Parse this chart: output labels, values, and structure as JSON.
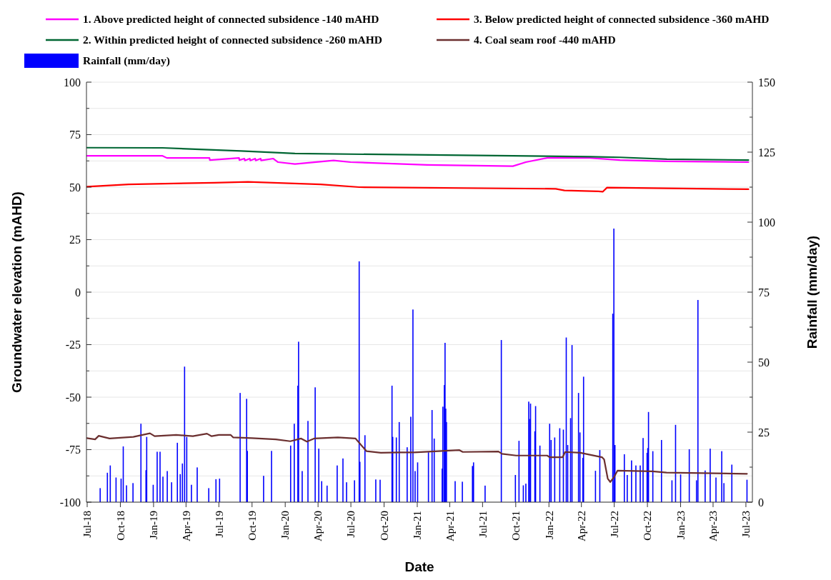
{
  "chart_data": {
    "type": "line",
    "xlabel": "Date",
    "ylabel": "Groundwater elevation (mAHD)",
    "y2label": "Rainfall (mm/day)",
    "xlim": [
      "2018-06-29",
      "2023-07-19"
    ],
    "xticks": [
      {
        "value": "2018-07-01",
        "label": "Jul-18"
      },
      {
        "value": "2018-10-01",
        "label": "Oct-18"
      },
      {
        "value": "2019-01-01",
        "label": "Jan-19"
      },
      {
        "value": "2019-04-01",
        "label": "Apr-19"
      },
      {
        "value": "2019-07-01",
        "label": "Jul-19"
      },
      {
        "value": "2019-10-01",
        "label": "Oct-19"
      },
      {
        "value": "2020-01-01",
        "label": "Jan-20"
      },
      {
        "value": "2020-04-01",
        "label": "Apr-20"
      },
      {
        "value": "2020-07-01",
        "label": "Jul-20"
      },
      {
        "value": "2020-10-01",
        "label": "Oct-20"
      },
      {
        "value": "2021-01-01",
        "label": "Jan-21"
      },
      {
        "value": "2021-04-01",
        "label": "Apr-21"
      },
      {
        "value": "2021-07-01",
        "label": "Jul-21"
      },
      {
        "value": "2021-10-01",
        "label": "Oct-21"
      },
      {
        "value": "2022-01-01",
        "label": "Jan-22"
      },
      {
        "value": "2022-04-01",
        "label": "Apr-22"
      },
      {
        "value": "2022-07-01",
        "label": "Jul-22"
      },
      {
        "value": "2022-10-01",
        "label": "Oct-22"
      },
      {
        "value": "2023-01-01",
        "label": "Jan-23"
      },
      {
        "value": "2023-04-01",
        "label": "Apr-23"
      },
      {
        "value": "2023-07-01",
        "label": "Jul-23"
      }
    ],
    "ylim": [
      -100,
      100
    ],
    "yticks": [
      -100,
      {
        "value": -87.5,
        "label": null
      },
      -75,
      {
        "value": -62.5,
        "label": null
      },
      -50,
      {
        "value": -37.5,
        "label": null
      },
      -25,
      {
        "value": -12.5,
        "label": null
      },
      0,
      {
        "value": 12.5,
        "label": null
      },
      25,
      {
        "value": 37.5,
        "label": null
      },
      50,
      {
        "value": 62.5,
        "label": null
      },
      75,
      {
        "value": 87.5,
        "label": null
      },
      100
    ],
    "y2lim": [
      0,
      150
    ],
    "y2ticks": [
      0,
      {
        "value": 12.5,
        "label": null
      },
      25,
      {
        "value": 37.5,
        "label": null
      },
      50,
      {
        "value": 62.5,
        "label": null
      },
      75,
      {
        "value": 87.5,
        "label": null
      },
      100,
      {
        "value": 112.5,
        "label": null
      },
      125,
      {
        "value": 137.5,
        "label": null
      },
      150
    ],
    "grid": "y",
    "legend": "top",
    "line_style": "solid",
    "series": [
      {
        "name": "Rainfall (mm/day)",
        "type": "bar",
        "axis": "y2",
        "color": "#0000ff",
        "x": [
          "2018-08-06",
          "2018-08-26",
          "2018-09-03",
          "2018-09-19",
          "2018-10-03",
          "2018-10-09",
          "2018-10-18",
          "2018-11-05",
          "2018-11-27",
          "2018-12-11",
          "2018-12-13",
          "2018-12-31",
          "2019-01-11",
          "2019-01-19",
          "2019-01-27",
          "2019-02-08",
          "2019-02-20",
          "2019-03-08",
          "2019-03-16",
          "2019-03-22",
          "2019-03-28",
          "2019-04-03",
          "2019-04-16",
          "2019-05-02",
          "2019-06-03",
          "2019-06-23",
          "2019-07-03",
          "2019-08-29",
          "2019-09-16",
          "2019-09-18",
          "2019-11-02",
          "2019-11-24",
          "2020-01-16",
          "2020-01-26",
          "2020-02-05",
          "2020-02-07",
          "2020-02-17",
          "2020-03-04",
          "2020-03-24",
          "2020-04-03",
          "2020-04-11",
          "2020-04-26",
          "2020-05-24",
          "2020-06-09",
          "2020-06-19",
          "2020-07-11",
          "2020-07-24",
          "2020-07-26",
          "2020-08-09",
          "2020-09-08",
          "2020-09-20",
          "2020-10-23",
          "2020-10-25",
          "2020-11-04",
          "2020-11-12",
          "2020-12-04",
          "2020-12-14",
          "2020-12-20",
          "2020-12-26",
          "2021-01-02",
          "2021-02-01",
          "2021-02-11",
          "2021-02-17",
          "2021-03-11",
          "2021-03-13",
          "2021-03-17",
          "2021-03-19",
          "2021-03-21",
          "2021-03-23",
          "2021-04-16",
          "2021-05-06",
          "2021-06-03",
          "2021-06-06",
          "2021-07-08",
          "2021-08-22",
          "2021-09-30",
          "2021-10-10",
          "2021-10-22",
          "2021-10-29",
          "2021-11-06",
          "2021-11-08",
          "2021-11-11",
          "2021-11-23",
          "2021-11-25",
          "2021-12-07",
          "2022-01-03",
          "2022-01-07",
          "2022-01-17",
          "2022-01-31",
          "2022-02-10",
          "2022-02-18",
          "2022-02-22",
          "2022-03-02",
          "2022-03-06",
          "2022-03-24",
          "2022-03-28",
          "2022-04-05",
          "2022-04-07",
          "2022-05-10",
          "2022-05-22",
          "2022-06-27",
          "2022-06-30",
          "2022-07-03",
          "2022-07-29",
          "2022-08-06",
          "2022-08-18",
          "2022-08-30",
          "2022-09-11",
          "2022-09-19",
          "2022-09-30",
          "2022-10-02",
          "2022-10-04",
          "2022-10-16",
          "2022-11-09",
          "2022-12-08",
          "2022-12-18",
          "2023-01-01",
          "2023-01-25",
          "2023-02-14",
          "2023-02-18",
          "2023-03-10",
          "2023-03-24",
          "2023-04-09",
          "2023-04-25",
          "2023-05-01",
          "2023-05-23",
          "2023-07-04"
        ],
        "values": [
          5.0,
          10.5,
          13.1,
          8.8,
          8.4,
          19.9,
          6.0,
          6.8,
          28.0,
          11.4,
          23.3,
          6.2,
          18.0,
          18.0,
          9.1,
          11.1,
          7.1,
          21.2,
          10.0,
          13.8,
          48.4,
          23.3,
          6.2,
          12.4,
          5.0,
          8.2,
          8.4,
          39.0,
          36.9,
          18.3,
          9.4,
          18.3,
          20.2,
          28.0,
          41.6,
          57.3,
          11.1,
          29.0,
          41.0,
          19.1,
          7.5,
          5.9,
          13.1,
          15.6,
          7.1,
          7.8,
          86.0,
          14.4,
          23.9,
          8.1,
          8.0,
          41.6,
          23.3,
          23.1,
          28.6,
          19.6,
          30.5,
          68.8,
          11.1,
          14.2,
          17.8,
          32.9,
          22.7,
          12.0,
          34.1,
          41.8,
          56.9,
          33.4,
          28.6,
          7.5,
          7.3,
          12.9,
          14.2,
          5.9,
          57.9,
          9.7,
          21.9,
          6.0,
          6.6,
          35.9,
          29.7,
          35.2,
          25.3,
          34.3,
          20.2,
          28.0,
          22.2,
          23.1,
          26.4,
          25.9,
          58.8,
          20.4,
          30.0,
          56.1,
          39.0,
          24.9,
          15.8,
          44.8,
          11.2,
          18.6,
          67.3,
          97.7,
          20.4,
          17.1,
          9.7,
          14.9,
          13.1,
          13.1,
          22.9,
          17.6,
          19.3,
          32.2,
          18.2,
          22.2,
          7.8,
          27.6,
          9.9,
          18.9,
          7.8,
          72.2,
          11.3,
          19.1,
          8.8,
          18.2,
          6.8,
          13.4,
          8.0
        ]
      },
      {
        "name": "1. Above predicted height of connected subsidence -140 mAHD",
        "color": "#ff00ff",
        "x": [
          "2018-06-30",
          "2019-01-26",
          "2019-02-07",
          "2019-06-05",
          "2019-06-06",
          "2019-08-26",
          "2019-08-27",
          "2019-09-10",
          "2019-09-11",
          "2019-09-25",
          "2019-09-26",
          "2019-10-10",
          "2019-10-11",
          "2019-10-25",
          "2019-10-26",
          "2019-11-29",
          "2019-12-12",
          "2020-01-28",
          "2020-05-14",
          "2020-06-30",
          "2021-01-29",
          "2021-09-23",
          "2021-10-29",
          "2021-12-27",
          "2022-04-25",
          "2022-07-17",
          "2022-11-24",
          "2023-07-08"
        ],
        "values": [
          64.9,
          64.9,
          63.9,
          63.9,
          62.9,
          63.9,
          62.9,
          63.6,
          62.7,
          63.6,
          62.7,
          63.6,
          62.7,
          63.6,
          62.7,
          63.6,
          61.9,
          61.0,
          62.7,
          61.9,
          60.6,
          60.0,
          61.9,
          63.9,
          63.9,
          62.9,
          62.3,
          61.9
        ]
      },
      {
        "name": "2. Within predicted height of connected subsidence -260 mAHD",
        "color": "#006633",
        "x": [
          "2018-06-30",
          "2019-01-26",
          "2019-09-01",
          "2020-01-28",
          "2021-09-23",
          "2022-04-25",
          "2022-07-17",
          "2022-11-24",
          "2023-07-08"
        ],
        "values": [
          68.8,
          68.7,
          67.2,
          66.0,
          64.9,
          64.5,
          64.2,
          63.3,
          62.9
        ]
      },
      {
        "name": "3. Below predicted height of connected subsidence -360 mAHD",
        "color": "#ff0000",
        "x": [
          "2018-06-30",
          "2018-10-24",
          "2019-06-17",
          "2019-09-20",
          "2020-04-08",
          "2020-07-24",
          "2022-01-20",
          "2022-02-13",
          "2022-05-18",
          "2022-05-30",
          "2022-06-11",
          "2023-07-08"
        ],
        "values": [
          50.2,
          51.3,
          52.1,
          52.5,
          51.3,
          50.0,
          49.2,
          48.4,
          48.0,
          47.8,
          49.8,
          49.0
        ]
      },
      {
        "name": "4. Coal seam roof -440 mAHD",
        "color": "#6b2f2f",
        "x": [
          "2018-06-30",
          "2018-07-23",
          "2018-08-02",
          "2018-09-01",
          "2018-11-06",
          "2018-12-22",
          "2019-01-04",
          "2019-03-05",
          "2019-04-20",
          "2019-05-29",
          "2019-06-11",
          "2019-07-01",
          "2019-08-03",
          "2019-08-10",
          "2019-10-01",
          "2019-12-06",
          "2020-01-15",
          "2020-02-14",
          "2020-03-01",
          "2020-03-21",
          "2020-05-26",
          "2020-07-14",
          "2020-08-13",
          "2020-09-22",
          "2020-11-13",
          "2020-12-23",
          "2021-04-27",
          "2021-05-07",
          "2021-08-14",
          "2021-08-24",
          "2021-10-02",
          "2021-12-27",
          "2022-01-03",
          "2022-02-08",
          "2022-02-15",
          "2022-03-29",
          "2022-05-28",
          "2022-06-03",
          "2022-06-13",
          "2022-06-20",
          "2022-06-30",
          "2022-07-10",
          "2022-10-15",
          "2022-11-23",
          "2023-07-04"
        ],
        "values": [
          -69.5,
          -70.1,
          -68.4,
          -69.7,
          -68.9,
          -67.2,
          -68.6,
          -68.0,
          -68.6,
          -67.4,
          -68.6,
          -68.0,
          -68.0,
          -69.2,
          -69.5,
          -70.1,
          -71.0,
          -69.7,
          -71.2,
          -69.7,
          -69.2,
          -69.7,
          -75.7,
          -76.5,
          -76.3,
          -76.3,
          -75.2,
          -76.1,
          -75.9,
          -77.0,
          -77.8,
          -77.8,
          -78.6,
          -78.6,
          -76.1,
          -76.5,
          -78.6,
          -79.7,
          -88.8,
          -90.4,
          -88.2,
          -85.0,
          -85.3,
          -85.9,
          -86.5
        ]
      }
    ]
  }
}
